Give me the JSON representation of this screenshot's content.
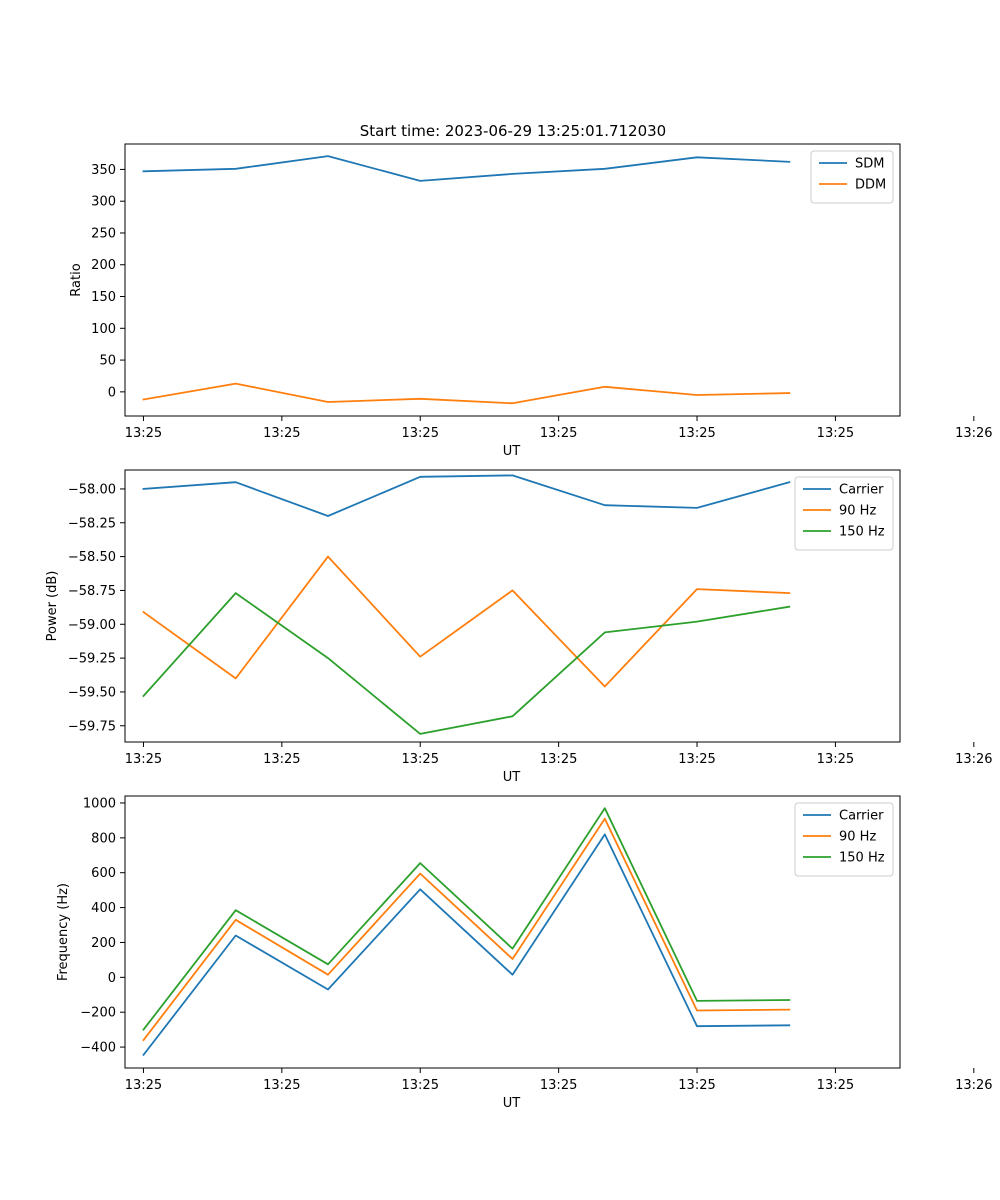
{
  "figure": {
    "title": "Start time: 2023-06-29 13:25:01.712030"
  },
  "colors": {
    "blue": "#1f77b4",
    "orange": "#ff7f0e",
    "green": "#2ca02c"
  },
  "chart_data": [
    {
      "type": "line",
      "title": "Start time: 2023-06-29 13:25:01.712030",
      "xlabel": "UT",
      "ylabel": "Ratio",
      "x": [
        1,
        2,
        3,
        4,
        5,
        6,
        7,
        8
      ],
      "xlim": [
        0.8,
        9.2
      ],
      "x_ticks": [
        1,
        2.5,
        4,
        5.5,
        7,
        8.5,
        10
      ],
      "x_tick_labels": [
        "13:25",
        "13:25",
        "13:25",
        "13:25",
        "13:25",
        "13:25",
        "13:26"
      ],
      "ylim": [
        -38,
        390
      ],
      "y_ticks": [
        0,
        50,
        100,
        150,
        200,
        250,
        300,
        350
      ],
      "legend_position": "top-right",
      "grid": false,
      "series": [
        {
          "name": "SDM",
          "color": "#1f77b4",
          "values": [
            347,
            351,
            371,
            332,
            343,
            351,
            369,
            362
          ]
        },
        {
          "name": "DDM",
          "color": "#ff7f0e",
          "values": [
            -12,
            13,
            -16,
            -11,
            -18,
            8,
            -5,
            -2
          ]
        }
      ]
    },
    {
      "type": "line",
      "title": "",
      "xlabel": "UT",
      "ylabel": "Power (dB)",
      "x": [
        1,
        2,
        3,
        4,
        5,
        6,
        7,
        8
      ],
      "xlim": [
        0.8,
        9.2
      ],
      "x_ticks": [
        1,
        2.5,
        4,
        5.5,
        7,
        8.5,
        10
      ],
      "x_tick_labels": [
        "13:25",
        "13:25",
        "13:25",
        "13:25",
        "13:25",
        "13:25",
        "13:26"
      ],
      "ylim": [
        -59.87,
        -57.86
      ],
      "y_ticks": [
        -59.75,
        -59.5,
        -59.25,
        -59.0,
        -58.75,
        -58.5,
        -58.25,
        -58.0
      ],
      "y_tick_labels": [
        "−59.75",
        "−59.50",
        "−59.25",
        "−59.00",
        "−58.75",
        "−58.50",
        "−58.25",
        "−58.00"
      ],
      "legend_position": "top-right",
      "grid": false,
      "series": [
        {
          "name": "Carrier",
          "color": "#1f77b4",
          "values": [
            -58.0,
            -57.95,
            -58.2,
            -57.91,
            -57.9,
            -58.12,
            -58.14,
            -57.95
          ]
        },
        {
          "name": "90 Hz",
          "color": "#ff7f0e",
          "values": [
            -58.91,
            -59.4,
            -58.5,
            -59.24,
            -58.75,
            -59.46,
            -58.74,
            -58.77
          ]
        },
        {
          "name": "150 Hz",
          "color": "#2ca02c",
          "values": [
            -59.53,
            -58.77,
            -59.25,
            -59.81,
            -59.68,
            -59.06,
            -58.98,
            -58.87
          ]
        }
      ]
    },
    {
      "type": "line",
      "title": "",
      "xlabel": "UT",
      "ylabel": "Frequency (Hz)",
      "x": [
        1,
        2,
        3,
        4,
        5,
        6,
        7,
        8
      ],
      "xlim": [
        0.8,
        9.2
      ],
      "x_ticks": [
        1,
        2.5,
        4,
        5.5,
        7,
        8.5,
        10
      ],
      "x_tick_labels": [
        "13:25",
        "13:25",
        "13:25",
        "13:25",
        "13:25",
        "13:25",
        "13:26"
      ],
      "ylim": [
        -520,
        1040
      ],
      "y_ticks": [
        -400,
        -200,
        0,
        200,
        400,
        600,
        800,
        1000
      ],
      "y_tick_labels": [
        "−400",
        "−200",
        "0",
        "200",
        "400",
        "600",
        "800",
        "1000"
      ],
      "legend_position": "top-right",
      "grid": false,
      "series": [
        {
          "name": "Carrier",
          "color": "#1f77b4",
          "values": [
            -445,
            240,
            -70,
            505,
            15,
            820,
            -280,
            -275
          ]
        },
        {
          "name": "90 Hz",
          "color": "#ff7f0e",
          "values": [
            -360,
            330,
            15,
            595,
            105,
            910,
            -190,
            -185
          ]
        },
        {
          "name": "150 Hz",
          "color": "#2ca02c",
          "values": [
            -300,
            385,
            75,
            655,
            165,
            970,
            -135,
            -130
          ]
        }
      ]
    }
  ]
}
